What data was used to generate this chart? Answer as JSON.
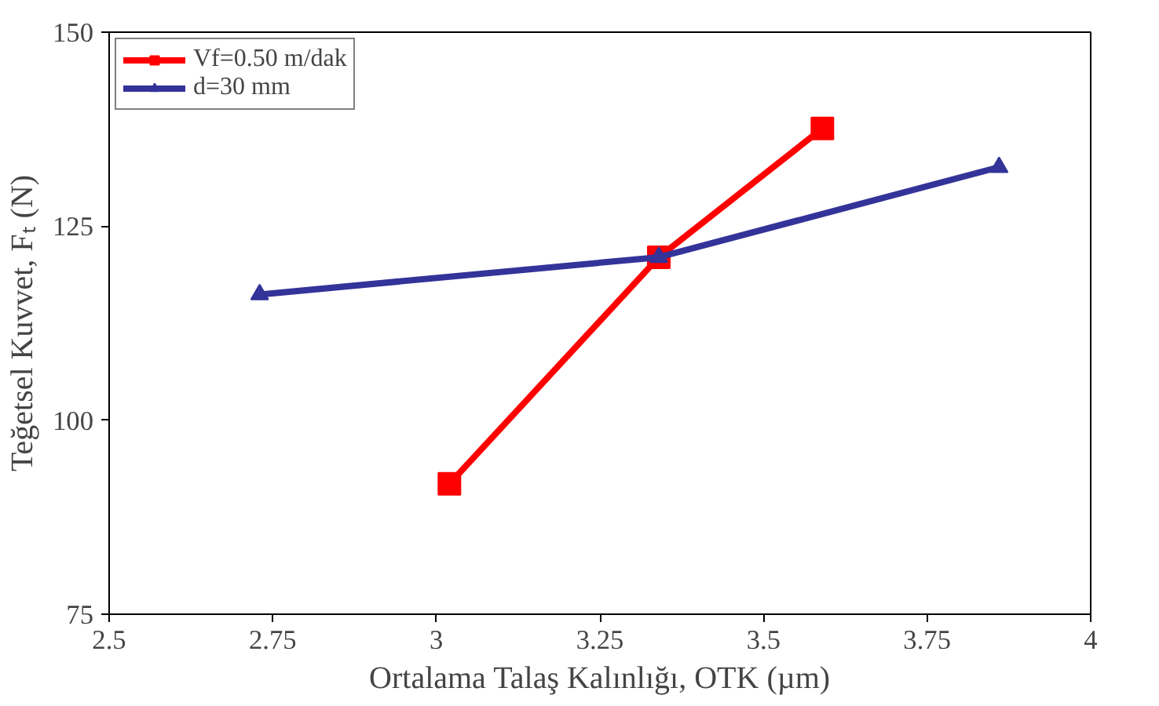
{
  "chart_data": {
    "type": "line",
    "xlabel": "Ortalama Talaş Kalınlığı, OTK (µm)",
    "ylabel": "Teğetsel Kuvvet, Fₜ (N)",
    "series": [
      {
        "name": "Vf=0.50 m/dak",
        "color": "#ff0000",
        "marker": "square",
        "x": [
          3.02,
          3.34,
          3.59
        ],
        "values": [
          91.8,
          121,
          137.6
        ]
      },
      {
        "name": "d=30 mm",
        "color": "#333399",
        "marker": "triangle",
        "x": [
          2.73,
          3.34,
          3.86
        ],
        "values": [
          116.2,
          121,
          132.6
        ]
      }
    ],
    "xlim": [
      2.5,
      4
    ],
    "xticks": [
      2.5,
      2.75,
      3,
      3.25,
      3.5,
      3.75,
      4
    ],
    "ylim": [
      75,
      150
    ],
    "yticks": [
      75,
      100,
      125,
      150
    ],
    "grid": false,
    "legend": "top left",
    "line_style": "solid"
  }
}
